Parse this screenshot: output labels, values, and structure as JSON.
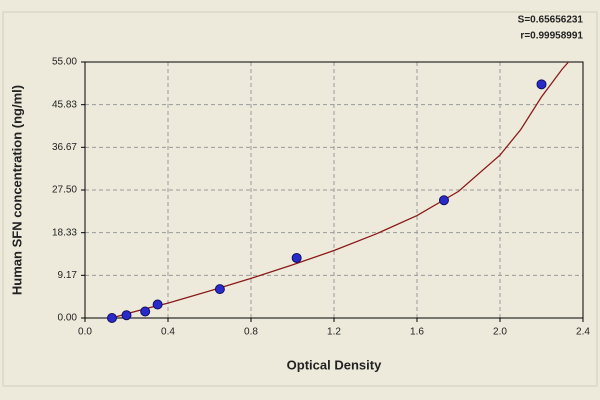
{
  "chart_data": {
    "type": "scatter",
    "xlabel": "Optical Density",
    "ylabel": "Human SFN concentration (ng/ml)",
    "annotations": [
      "S=0.65656231",
      "r=0.99958991"
    ],
    "xlim": [
      0,
      2.4
    ],
    "ylim": [
      0,
      55
    ],
    "xticks": [
      {
        "value": 0,
        "label": "0.0"
      },
      0.4,
      0.8,
      1.2,
      1.6,
      {
        "value": 2,
        "label": "2.0"
      },
      2.4
    ],
    "yticks": [
      {
        "value": 0,
        "label": "0.00"
      },
      9.17,
      18.33,
      {
        "value": 27.5,
        "label": "27.50"
      },
      36.67,
      45.83,
      {
        "value": 55,
        "label": "55.00"
      }
    ],
    "grid": true,
    "points": {
      "color": "#2a2acb",
      "x": [
        0.13,
        0.2,
        0.29,
        0.35,
        0.65,
        1.02,
        1.73,
        2.2
      ],
      "y": [
        0,
        0.6,
        1.4,
        2.9,
        6.2,
        12.9,
        25.3,
        50.2
      ]
    },
    "curve": {
      "color": "#8b1a1a",
      "x": [
        0.13,
        0.2,
        0.3,
        0.4,
        0.6,
        0.8,
        1.0,
        1.2,
        1.4,
        1.6,
        1.8,
        2.0,
        2.1,
        2.2,
        2.3,
        2.33
      ],
      "y": [
        0,
        0.9,
        2.1,
        3.2,
        5.8,
        8.5,
        11.4,
        14.5,
        18.0,
        22.0,
        27.2,
        35.0,
        40.5,
        47.5,
        53.5,
        55
      ]
    }
  }
}
